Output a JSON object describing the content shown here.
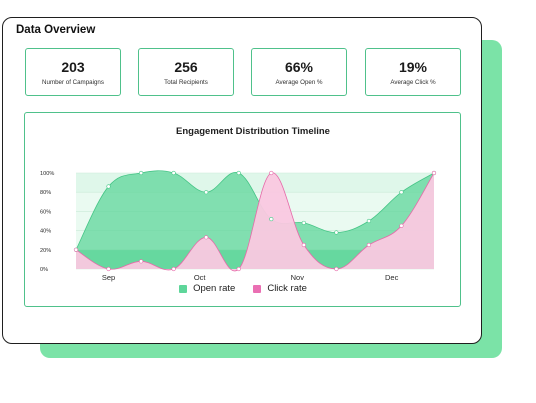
{
  "header": {
    "title": "Data Overview"
  },
  "stats": [
    {
      "value": "203",
      "label": "Number of Campaigns"
    },
    {
      "value": "256",
      "label": "Total Recipients"
    },
    {
      "value": "66%",
      "label": "Average Open %"
    },
    {
      "value": "19%",
      "label": "Average Click %"
    }
  ],
  "chart": {
    "title": "Engagement Distribution Timeline",
    "legend": [
      {
        "label": "Open rate",
        "color": "#5ed69a"
      },
      {
        "label": "Click rate",
        "color": "#ea6fb3"
      }
    ]
  },
  "chart_data": {
    "type": "area",
    "title": "Engagement Distribution Timeline",
    "xlabel": "",
    "ylabel": "",
    "x_tick_labels": [
      "Sep",
      "Oct",
      "Nov",
      "Dec"
    ],
    "y_tick_labels": [
      "100%",
      "80%",
      "60%",
      "40%",
      "20%",
      "0%"
    ],
    "ylim": [
      0,
      100
    ],
    "grid": true,
    "legend_position": "bottom",
    "x": [
      0,
      1,
      2,
      3,
      4,
      5,
      6,
      7,
      8,
      9,
      10,
      11
    ],
    "series": [
      {
        "name": "Open rate",
        "color": "#5ed69a",
        "values": [
          20,
          86,
          100,
          100,
          80,
          100,
          52,
          48,
          38,
          50,
          80,
          100
        ]
      },
      {
        "name": "Click rate",
        "color": "#ea6fb3",
        "values": [
          20,
          0,
          8,
          0,
          33,
          0,
          100,
          25,
          0,
          25,
          45,
          100
        ]
      }
    ]
  }
}
